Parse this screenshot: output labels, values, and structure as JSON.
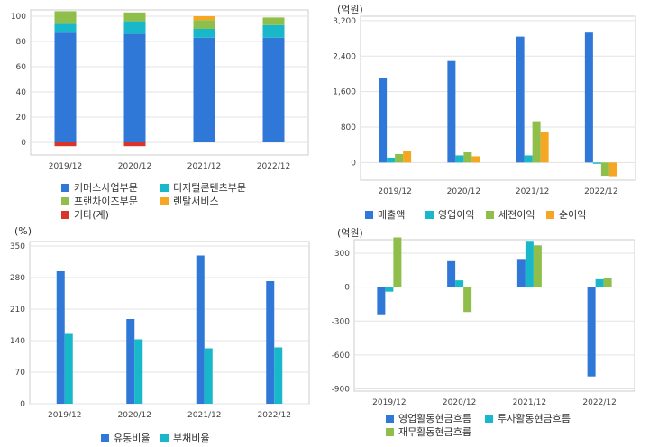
{
  "chart_data": [
    {
      "type": "bar",
      "stacked": true,
      "categories": [
        "2019/12",
        "2020/12",
        "2021/12",
        "2022/12"
      ],
      "series": [
        {
          "name": "커머스사업부문",
          "values": [
            87,
            86,
            83,
            83
          ],
          "color": "#2f78d8"
        },
        {
          "name": "디지털콘텐츠부문",
          "values": [
            7,
            10,
            7,
            10
          ],
          "color": "#18b7c9"
        },
        {
          "name": "프랜차이즈부문",
          "values": [
            10,
            7,
            7,
            6
          ],
          "color": "#8fbf4a"
        },
        {
          "name": "렌탈서비스",
          "values": [
            0,
            0,
            3,
            0
          ],
          "color": "#f5a623"
        },
        {
          "name": "기타(계)",
          "values": [
            -3,
            -3,
            0,
            0
          ],
          "color": "#d9342b"
        }
      ],
      "ylim": [
        -10,
        105
      ],
      "yticks": [
        "0",
        "20",
        "40",
        "60",
        "80",
        "100"
      ],
      "ylabel": "",
      "grid": true
    },
    {
      "type": "bar",
      "unit_label": "(억원)",
      "categories": [
        "2019/12",
        "2020/12",
        "2021/12",
        "2022/12"
      ],
      "series": [
        {
          "name": "매출액",
          "values": [
            1910,
            2290,
            2840,
            2930
          ],
          "color": "#2f78d8"
        },
        {
          "name": "영업이익",
          "values": [
            110,
            160,
            160,
            -30
          ],
          "color": "#18b7c9"
        },
        {
          "name": "세전이익",
          "values": [
            190,
            230,
            930,
            -300
          ],
          "color": "#8fbf4a"
        },
        {
          "name": "순이익",
          "values": [
            250,
            140,
            680,
            -310
          ],
          "color": "#f5a623"
        }
      ],
      "ylim": [
        -400,
        3300
      ],
      "yticks": [
        "0",
        "800",
        "1,600",
        "2,400",
        "3,200"
      ],
      "grid": true
    },
    {
      "type": "bar",
      "unit_label": "(%)",
      "categories": [
        "2019/12",
        "2020/12",
        "2021/12",
        "2022/12"
      ],
      "series": [
        {
          "name": "유동비율",
          "values": [
            294,
            188,
            329,
            272
          ],
          "color": "#2f78d8"
        },
        {
          "name": "부채비율",
          "values": [
            155,
            143,
            123,
            125
          ],
          "color": "#18b7c9"
        }
      ],
      "ylim": [
        0,
        360
      ],
      "yticks": [
        "0",
        "70",
        "140",
        "210",
        "280",
        "350"
      ],
      "grid": true
    },
    {
      "type": "bar",
      "unit_label": "(억원)",
      "categories": [
        "2019/12",
        "2020/12",
        "2021/12",
        "2022/12"
      ],
      "series": [
        {
          "name": "영업활동현금흐름",
          "values": [
            -240,
            230,
            250,
            -790
          ],
          "color": "#2f78d8"
        },
        {
          "name": "투자활동현금흐름",
          "values": [
            -40,
            60,
            410,
            70
          ],
          "color": "#18b7c9"
        },
        {
          "name": "재무활동현금흐름",
          "values": [
            440,
            -220,
            370,
            80
          ],
          "color": "#8fbf4a"
        }
      ],
      "ylim": [
        -920,
        420
      ],
      "yticks": [
        "-900",
        "-600",
        "-300",
        "0",
        "300"
      ],
      "grid": true
    }
  ]
}
